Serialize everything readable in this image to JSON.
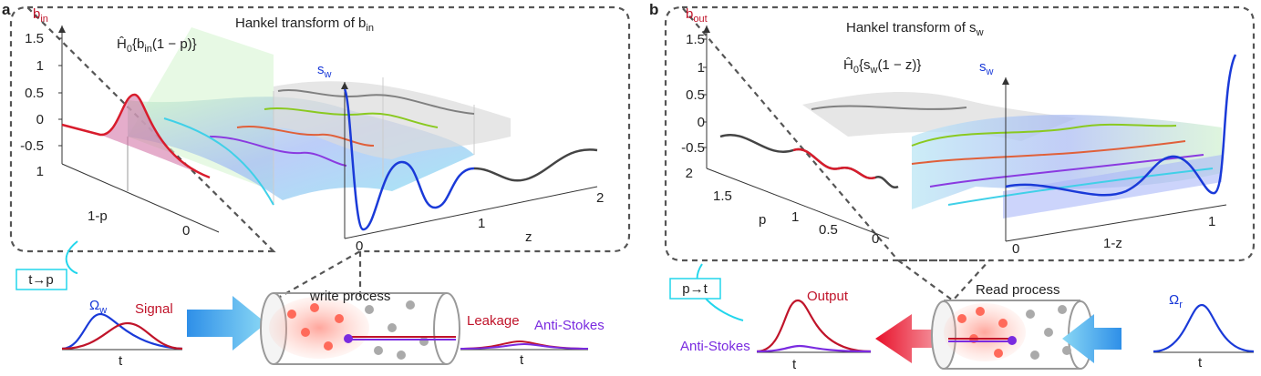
{
  "panel_a": {
    "letter": "a",
    "title": {
      "main": "Hankel transform of b",
      "sub": "in"
    },
    "vertical_label": {
      "main": "b",
      "sub": "in"
    },
    "vertical_ticks": [
      "1.5",
      "1",
      "0.5",
      "0",
      "-0.5",
      "1"
    ],
    "transform_label": {
      "symbol": "Ĥ",
      "symbol_sub": "0",
      "open": "{b",
      "arg_sub": "in",
      "close": "(1 − p)}"
    },
    "sw_label": {
      "main": "s",
      "sub": "w"
    },
    "depth_label": "1-p",
    "depth_ticks": [
      "0"
    ],
    "z_label": "z",
    "z_ticks": [
      "0",
      "1",
      "2"
    ],
    "mapping": "t→p",
    "control_label": {
      "main": "Ω",
      "sub": "w"
    },
    "signal_label": "Signal",
    "time_label_in": "t",
    "process_label": "write process",
    "leakage_label": "Leakage",
    "antistokes_label": "Anti-Stokes",
    "time_label_out": "t"
  },
  "panel_b": {
    "letter": "b",
    "title": {
      "main": "Hankel transform of s",
      "sub": "w"
    },
    "vertical_label": {
      "main": "b",
      "sub": "out"
    },
    "vertical_ticks": [
      "1.5",
      "1",
      "0.5",
      "0",
      "-0.5",
      "2"
    ],
    "transform_label": {
      "symbol": "Ĥ",
      "symbol_sub": "0",
      "open": "{s",
      "arg_sub": "w",
      "close": "(1 − z)}"
    },
    "sw_label": {
      "main": "s",
      "sub": "w"
    },
    "depth_label": "p",
    "depth_ticks": [
      "1.5",
      "1",
      "0.5",
      "0"
    ],
    "z_label": "1-z",
    "z_ticks": [
      "0",
      "1"
    ],
    "mapping": "p→t",
    "output_label": "Output",
    "antistokes_label": "Anti-Stokes",
    "time_label_out": "t",
    "process_label": "Read process",
    "control_label": {
      "main": "Ω",
      "sub": "r"
    },
    "time_label_in": "t"
  }
}
